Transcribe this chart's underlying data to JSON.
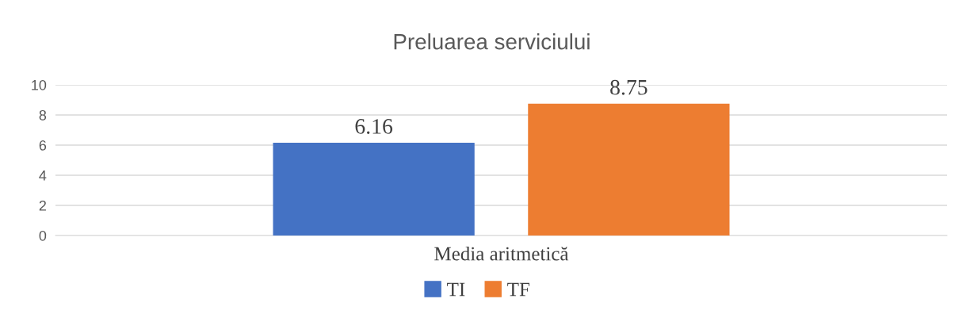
{
  "chart_data": {
    "type": "bar",
    "title": "Preluarea serviciului",
    "categories": [
      "Media aritmetică"
    ],
    "series": [
      {
        "name": "TI",
        "color": "#4472c4",
        "values": [
          6.16
        ]
      },
      {
        "name": "TF",
        "color": "#ed7d31",
        "values": [
          8.75
        ]
      }
    ],
    "ylim": [
      0,
      10
    ],
    "yticks": [
      0,
      2,
      4,
      6,
      8,
      10
    ],
    "grid": "y",
    "legend": "bottom",
    "data_labels": true
  }
}
